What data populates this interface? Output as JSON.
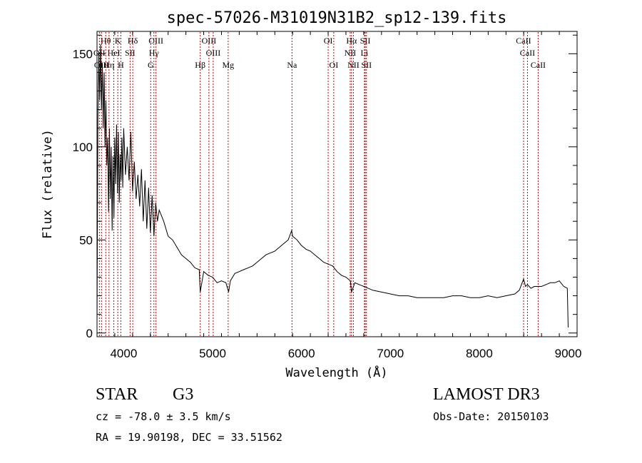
{
  "chart_data": {
    "type": "line",
    "title": "spec-57026-M31019N31B2_sp12-139.fits",
    "xlabel": "Wavelength (Å)",
    "ylabel": "Flux (relative)",
    "xlim": [
      3700,
      9100
    ],
    "ylim": [
      -2,
      162
    ],
    "xticks": [
      4000,
      5000,
      6000,
      7000,
      8000,
      9000
    ],
    "yticks": [
      0,
      50,
      100,
      150
    ],
    "series": [
      {
        "name": "spectrum",
        "x": [
          3700,
          3710,
          3720,
          3730,
          3740,
          3750,
          3760,
          3770,
          3780,
          3790,
          3800,
          3810,
          3820,
          3830,
          3840,
          3850,
          3860,
          3870,
          3880,
          3890,
          3900,
          3910,
          3920,
          3930,
          3940,
          3950,
          3960,
          3970,
          3980,
          3990,
          4000,
          4020,
          4040,
          4060,
          4080,
          4100,
          4120,
          4140,
          4160,
          4180,
          4200,
          4220,
          4240,
          4260,
          4280,
          4300,
          4320,
          4340,
          4360,
          4380,
          4400,
          4450,
          4500,
          4550,
          4600,
          4650,
          4700,
          4750,
          4800,
          4850,
          4861,
          4900,
          4950,
          5000,
          5050,
          5100,
          5150,
          5180,
          5200,
          5250,
          5300,
          5350,
          5400,
          5450,
          5500,
          5550,
          5600,
          5650,
          5700,
          5750,
          5800,
          5850,
          5890,
          5900,
          5950,
          6000,
          6050,
          6100,
          6150,
          6200,
          6250,
          6300,
          6350,
          6400,
          6450,
          6500,
          6550,
          6563,
          6600,
          6650,
          6700,
          6750,
          6800,
          6900,
          7000,
          7100,
          7200,
          7300,
          7400,
          7500,
          7600,
          7700,
          7800,
          7900,
          8000,
          8100,
          8200,
          8300,
          8400,
          8450,
          8498,
          8520,
          8542,
          8580,
          8620,
          8662,
          8700,
          8750,
          8800,
          8850,
          8900,
          8950,
          8990,
          9000
        ],
        "y": [
          5,
          115,
          150,
          125,
          155,
          120,
          145,
          110,
          140,
          100,
          125,
          90,
          105,
          65,
          110,
          72,
          100,
          55,
          95,
          62,
          105,
          80,
          112,
          75,
          108,
          70,
          96,
          82,
          105,
          78,
          110,
          85,
          100,
          82,
          108,
          76,
          92,
          72,
          85,
          68,
          88,
          60,
          82,
          56,
          78,
          54,
          74,
          52,
          70,
          60,
          66,
          60,
          52,
          50,
          46,
          42,
          40,
          38,
          35,
          34,
          22,
          33,
          31,
          30,
          27,
          28,
          27,
          22,
          28,
          32,
          33,
          34,
          35,
          36,
          38,
          40,
          42,
          43,
          44,
          46,
          48,
          50,
          55,
          52,
          50,
          47,
          45,
          44,
          42,
          40,
          38,
          37,
          36,
          33,
          31,
          30,
          28,
          22,
          27,
          26,
          25,
          24,
          23,
          22,
          21,
          20,
          20,
          19,
          19,
          19,
          19,
          20,
          20,
          19,
          19,
          20,
          19,
          20,
          21,
          23,
          29,
          25,
          26,
          24,
          25,
          25,
          25,
          26,
          27,
          27,
          28,
          25,
          24,
          3
        ]
      }
    ],
    "lines": [
      {
        "name": "Hθ",
        "wl": 3798,
        "row": 1
      },
      {
        "name": "K",
        "wl": 3934,
        "row": 1
      },
      {
        "name": "Hδ",
        "wl": 4102,
        "row": 1
      },
      {
        "name": "OIII",
        "wl": 4363,
        "row": 1
      },
      {
        "name": "OIII",
        "wl": 4959,
        "row": 1
      },
      {
        "name": "OI",
        "wl": 6300,
        "row": 1
      },
      {
        "name": "Hα",
        "wl": 6563,
        "row": 1
      },
      {
        "name": "SII",
        "wl": 6717,
        "row": 1
      },
      {
        "name": "CaII",
        "wl": 8498,
        "row": 1
      },
      {
        "name": "OII",
        "wl": 3727,
        "row": 2
      },
      {
        "name": "HeI",
        "wl": 3889,
        "row": 2
      },
      {
        "name": "SII",
        "wl": 4072,
        "row": 2
      },
      {
        "name": "Hγ",
        "wl": 4340,
        "row": 2
      },
      {
        "name": "OIII",
        "wl": 5007,
        "row": 2
      },
      {
        "name": "NII",
        "wl": 6548,
        "row": 2
      },
      {
        "name": "Li",
        "wl": 6708,
        "row": 2
      },
      {
        "name": "CaII",
        "wl": 8542,
        "row": 2
      },
      {
        "name": "OIII",
        "wl": 3750,
        "row": 3
      },
      {
        "name": "Hη",
        "wl": 3835,
        "row": 3
      },
      {
        "name": "H",
        "wl": 3968,
        "row": 3
      },
      {
        "name": "G",
        "wl": 4304,
        "row": 3
      },
      {
        "name": "Hβ",
        "wl": 4861,
        "row": 3
      },
      {
        "name": "Mg",
        "wl": 5175,
        "row": 3
      },
      {
        "name": "Na",
        "wl": 5893,
        "row": 3
      },
      {
        "name": "OI",
        "wl": 6363,
        "row": 3
      },
      {
        "name": "NII",
        "wl": 6584,
        "row": 3
      },
      {
        "name": "SII",
        "wl": 6731,
        "row": 3
      },
      {
        "name": "CaII",
        "wl": 8662,
        "row": 3
      }
    ]
  },
  "info": {
    "object_class": "STAR",
    "subclass": "G3",
    "survey": "LAMOST DR3",
    "cz": "cz = -78.0 ± 3.5 km/s",
    "obs_date": "Obs-Date: 20150103",
    "coords": "RA =  19.90198, DEC =  33.51562"
  }
}
